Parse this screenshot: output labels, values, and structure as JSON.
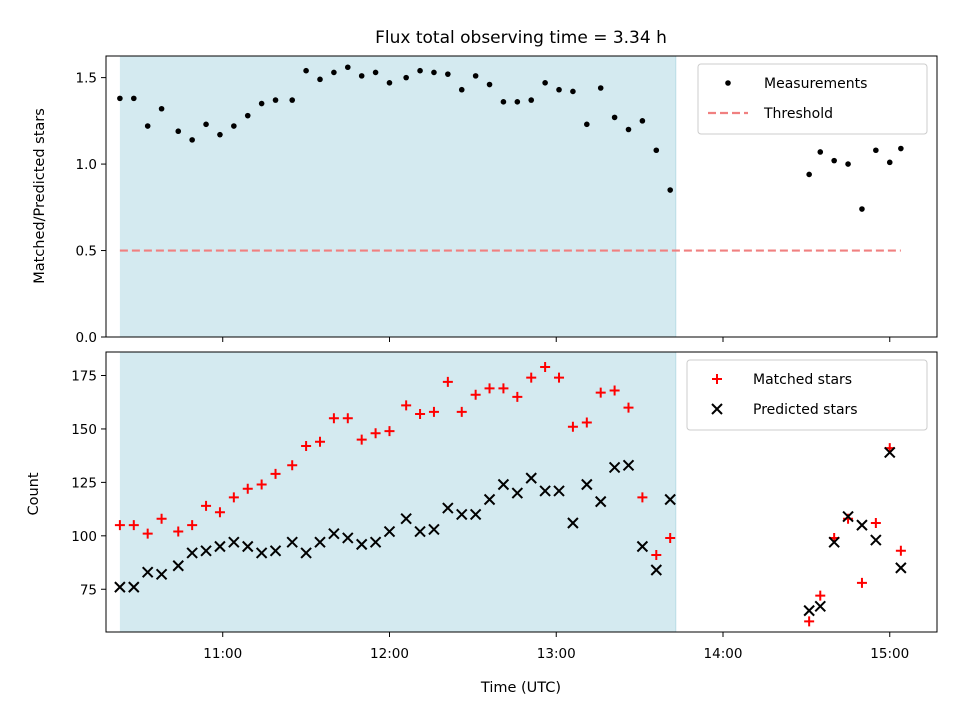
{
  "chart_data": [
    {
      "type": "scatter",
      "title": "Flux total observing time = 3.34 h",
      "ylabel": "Matched/Predicted stars",
      "xlabel": "",
      "ylim": [
        0,
        1.625
      ],
      "yticks": [
        0.0,
        0.5,
        1.0,
        1.5
      ],
      "ytick_labels": [
        "0.0",
        "0.5",
        "1.0",
        "1.5"
      ],
      "xticks": [
        "11:00",
        "12:00",
        "13:00",
        "14:00",
        "15:00"
      ],
      "xlim": [
        "10:18",
        "15:17"
      ],
      "shaded_interval": [
        "10:23",
        "13:43"
      ],
      "legend_position": "top-right",
      "series": [
        {
          "name": "Measurements",
          "marker": "dot",
          "color": "#000000",
          "x": [
            "10:23",
            "10:28",
            "10:33",
            "10:38",
            "10:44",
            "10:49",
            "10:54",
            "10:59",
            "11:04",
            "11:09",
            "11:14",
            "11:19",
            "11:25",
            "11:30",
            "11:35",
            "11:40",
            "11:45",
            "11:50",
            "11:55",
            "12:00",
            "12:06",
            "12:11",
            "12:16",
            "12:21",
            "12:26",
            "12:31",
            "12:36",
            "12:41",
            "12:46",
            "12:51",
            "12:56",
            "13:01",
            "13:06",
            "13:11",
            "13:16",
            "13:21",
            "13:26",
            "13:31",
            "13:36",
            "13:41",
            "14:31",
            "14:35",
            "14:40",
            "14:45",
            "14:50",
            "14:55",
            "15:00",
            "15:04"
          ],
          "y": [
            1.38,
            1.38,
            1.22,
            1.32,
            1.19,
            1.14,
            1.23,
            1.17,
            1.22,
            1.28,
            1.35,
            1.37,
            1.37,
            1.54,
            1.49,
            1.53,
            1.56,
            1.51,
            1.53,
            1.47,
            1.5,
            1.54,
            1.53,
            1.52,
            1.43,
            1.51,
            1.46,
            1.36,
            1.36,
            1.37,
            1.47,
            1.43,
            1.42,
            1.23,
            1.44,
            1.27,
            1.2,
            1.25,
            1.08,
            0.85,
            0.94,
            1.07,
            1.02,
            1.0,
            0.74,
            1.08,
            1.01,
            1.09
          ]
        },
        {
          "name": "Threshold",
          "line": "dashed",
          "color": "#f08080",
          "x": [
            "10:23",
            "15:04"
          ],
          "y": [
            0.5,
            0.5
          ]
        }
      ]
    },
    {
      "type": "scatter",
      "title": "",
      "xlabel": "Time (UTC)",
      "ylabel": "Count",
      "ylim": [
        55,
        186
      ],
      "yticks": [
        75,
        100,
        125,
        150,
        175
      ],
      "ytick_labels": [
        "75",
        "100",
        "125",
        "150",
        "175"
      ],
      "xticks": [
        "11:00",
        "12:00",
        "13:00",
        "14:00",
        "15:00"
      ],
      "xlim": [
        "10:18",
        "15:17"
      ],
      "shaded_interval": [
        "10:23",
        "13:43"
      ],
      "legend_position": "top-right",
      "series": [
        {
          "name": "Matched stars",
          "marker": "plus",
          "color": "#ff0000",
          "x": [
            "10:23",
            "10:28",
            "10:33",
            "10:38",
            "10:44",
            "10:49",
            "10:54",
            "10:59",
            "11:04",
            "11:09",
            "11:14",
            "11:19",
            "11:25",
            "11:30",
            "11:35",
            "11:40",
            "11:45",
            "11:50",
            "11:55",
            "12:00",
            "12:06",
            "12:11",
            "12:16",
            "12:21",
            "12:26",
            "12:31",
            "12:36",
            "12:41",
            "12:46",
            "12:51",
            "12:56",
            "13:01",
            "13:06",
            "13:11",
            "13:16",
            "13:21",
            "13:26",
            "13:31",
            "13:36",
            "13:41",
            "14:31",
            "14:35",
            "14:40",
            "14:45",
            "14:50",
            "14:55",
            "15:00",
            "15:04"
          ],
          "y": [
            105,
            105,
            101,
            108,
            102,
            105,
            114,
            111,
            118,
            122,
            124,
            129,
            133,
            142,
            144,
            155,
            155,
            145,
            148,
            149,
            161,
            157,
            158,
            172,
            158,
            166,
            169,
            169,
            165,
            174,
            179,
            174,
            151,
            153,
            167,
            168,
            160,
            118,
            91,
            99,
            60,
            72,
            99,
            108,
            78,
            106,
            141,
            93
          ]
        },
        {
          "name": "Predicted stars",
          "marker": "x",
          "color": "#000000",
          "x": [
            "10:23",
            "10:28",
            "10:33",
            "10:38",
            "10:44",
            "10:49",
            "10:54",
            "10:59",
            "11:04",
            "11:09",
            "11:14",
            "11:19",
            "11:25",
            "11:30",
            "11:35",
            "11:40",
            "11:45",
            "11:50",
            "11:55",
            "12:00",
            "12:06",
            "12:11",
            "12:16",
            "12:21",
            "12:26",
            "12:31",
            "12:36",
            "12:41",
            "12:46",
            "12:51",
            "12:56",
            "13:01",
            "13:06",
            "13:11",
            "13:16",
            "13:21",
            "13:26",
            "13:31",
            "13:36",
            "13:41",
            "14:31",
            "14:35",
            "14:40",
            "14:45",
            "14:50",
            "14:55",
            "15:00",
            "15:04"
          ],
          "y": [
            76,
            76,
            83,
            82,
            86,
            92,
            93,
            95,
            97,
            95,
            92,
            93,
            97,
            92,
            97,
            101,
            99,
            96,
            97,
            102,
            108,
            102,
            103,
            113,
            110,
            110,
            117,
            124,
            120,
            127,
            121,
            121,
            106,
            124,
            116,
            132,
            133,
            95,
            84,
            117,
            65,
            67,
            97,
            109,
            105,
            98,
            139,
            85
          ]
        }
      ]
    }
  ]
}
